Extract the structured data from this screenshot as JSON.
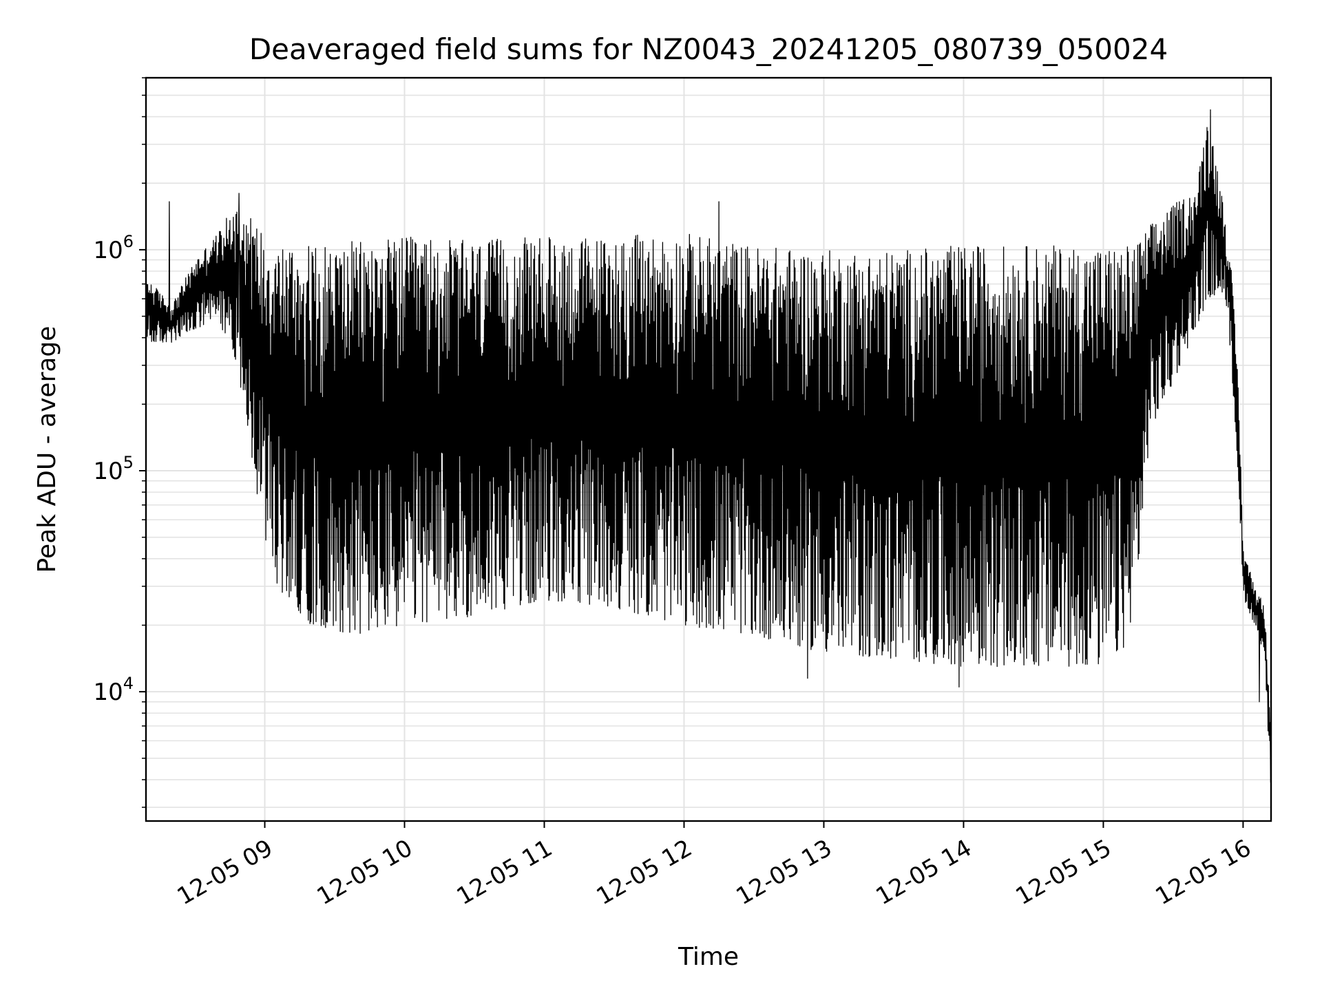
{
  "chart_data": {
    "type": "line",
    "title": "Deaveraged field sums for NZ0043_20241205_080739_050024",
    "xlabel": "Time",
    "ylabel": "Peak ADU - average",
    "y_scale": "log",
    "ylim": [
      2600,
      6000000
    ],
    "xlim": [
      "2024-12-05 08:09",
      "2024-12-05 16:12"
    ],
    "grid": true,
    "legend": "none",
    "line_color": "#000000",
    "x_ticks": [
      "12-05 09",
      "12-05 10",
      "12-05 11",
      "12-05 12",
      "12-05 13",
      "12-05 14",
      "12-05 15",
      "12-05 16"
    ],
    "x_tick_times": [
      "2024-12-05 09:00",
      "2024-12-05 10:00",
      "2024-12-05 11:00",
      "2024-12-05 12:00",
      "2024-12-05 13:00",
      "2024-12-05 14:00",
      "2024-12-05 15:00",
      "2024-12-05 16:00"
    ],
    "y_ticks": [
      {
        "base": "10",
        "exp": "4",
        "value": 10000
      },
      {
        "base": "10",
        "exp": "5",
        "value": 100000
      },
      {
        "base": "10",
        "exp": "6",
        "value": 1000000
      }
    ],
    "series": [
      {
        "description_points": "envelope of rapidly oscillating signal (time, low, high)",
        "envelope": [
          [
            "2024-12-05 08:09",
            380000,
            760000
          ],
          [
            "2024-12-05 08:20",
            380000,
            560000
          ],
          [
            "2024-12-05 08:30",
            430000,
            900000
          ],
          [
            "2024-12-05 08:40",
            480000,
            1200000
          ],
          [
            "2024-12-05 08:47",
            330000,
            1600000
          ],
          [
            "2024-12-05 08:52",
            180000,
            1500000
          ],
          [
            "2024-12-05 08:57",
            70000,
            1300000
          ],
          [
            "2024-12-05 09:05",
            30000,
            1100000
          ],
          [
            "2024-12-05 09:20",
            20000,
            1050000
          ],
          [
            "2024-12-05 09:40",
            18000,
            1100000
          ],
          [
            "2024-12-05 10:00",
            20000,
            1150000
          ],
          [
            "2024-12-05 10:30",
            22000,
            1100000
          ],
          [
            "2024-12-05 11:00",
            26000,
            1150000
          ],
          [
            "2024-12-05 11:30",
            24000,
            1150000
          ],
          [
            "2024-12-05 12:00",
            20000,
            1200000
          ],
          [
            "2024-12-05 12:30",
            18000,
            1050000
          ],
          [
            "2024-12-05 13:00",
            15000,
            1000000
          ],
          [
            "2024-12-05 13:30",
            14000,
            1000000
          ],
          [
            "2024-12-05 14:00",
            13000,
            1050000
          ],
          [
            "2024-12-05 14:30",
            13000,
            1050000
          ],
          [
            "2024-12-05 15:00",
            13000,
            1050000
          ],
          [
            "2024-12-05 15:10",
            16000,
            1050000
          ],
          [
            "2024-12-05 15:15",
            35000,
            1100000
          ],
          [
            "2024-12-05 15:20",
            150000,
            1300000
          ],
          [
            "2024-12-05 15:30",
            250000,
            1600000
          ],
          [
            "2024-12-05 15:40",
            450000,
            1900000
          ],
          [
            "2024-12-05 15:45",
            600000,
            4300000
          ],
          [
            "2024-12-05 15:52",
            650000,
            1500000
          ],
          [
            "2024-12-05 15:55",
            300000,
            800000
          ],
          [
            "2024-12-05 15:58",
            90000,
            250000
          ],
          [
            "2024-12-05 16:00",
            27000,
            45000
          ],
          [
            "2024-12-05 16:05",
            20000,
            30000
          ],
          [
            "2024-12-05 16:09",
            15000,
            25000
          ],
          [
            "2024-12-05 16:12",
            3500,
            8000
          ]
        ],
        "spikes": [
          [
            "2024-12-05 08:19",
            1650000
          ],
          [
            "2024-12-05 08:49",
            1800000
          ],
          [
            "2024-12-05 12:15",
            1650000
          ],
          [
            "2024-12-05 15:46",
            4300000
          ],
          [
            "2024-12-05 13:58",
            10500
          ],
          [
            "2024-12-05 12:53",
            11500
          ],
          [
            "2024-12-05 16:07",
            9000
          ]
        ]
      }
    ]
  }
}
